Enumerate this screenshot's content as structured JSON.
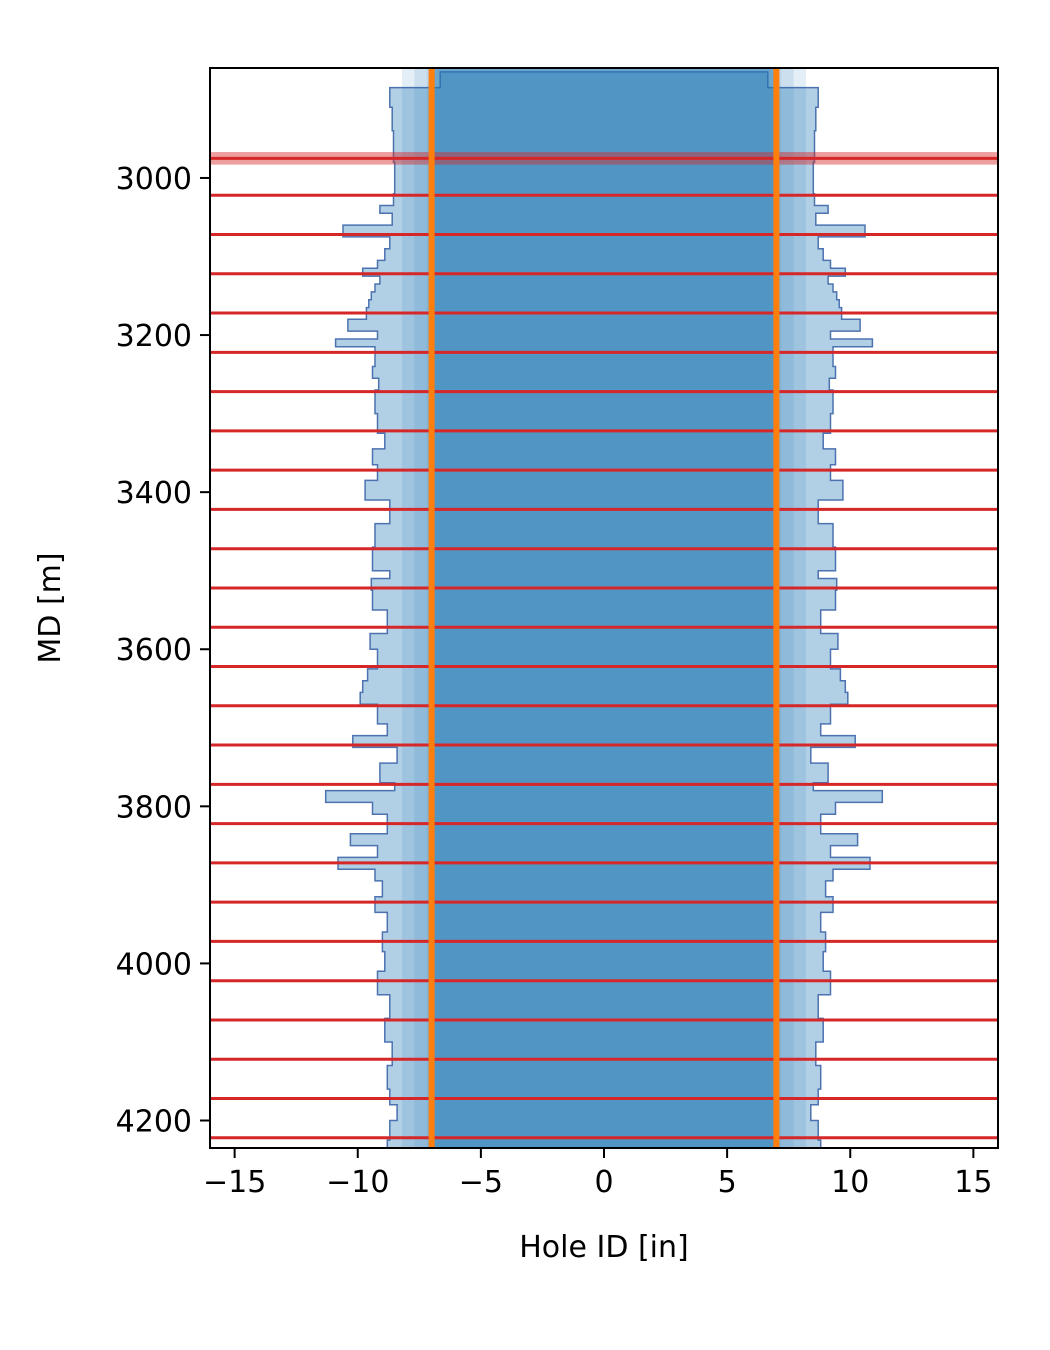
{
  "chart_data": {
    "type": "area",
    "xlabel": "Hole ID [in]",
    "ylabel": "MD [m]",
    "xlim": [
      -16,
      16
    ],
    "ylim": [
      4235,
      2860
    ],
    "y_inverted": true,
    "xticks": [
      -15,
      -10,
      -5,
      0,
      5,
      10,
      15
    ],
    "xtick_labels": [
      "−15",
      "−10",
      "−5",
      "0",
      "5",
      "10",
      "15"
    ],
    "yticks": [
      3000,
      3200,
      3400,
      3600,
      3800,
      4000,
      4200
    ],
    "ytick_labels": [
      "3000",
      "3200",
      "3400",
      "3600",
      "3800",
      "4000",
      "4200"
    ],
    "caliper_profile": {
      "md": [
        2865,
        2885,
        2910,
        2940,
        2980,
        3020,
        3035,
        3045,
        3060,
        3075,
        3090,
        3105,
        3115,
        3125,
        3135,
        3145,
        3155,
        3165,
        3180,
        3195,
        3205,
        3215,
        3240,
        3255,
        3270,
        3300,
        3325,
        3345,
        3365,
        3385,
        3410,
        3440,
        3470,
        3500,
        3510,
        3525,
        3550,
        3580,
        3600,
        3625,
        3640,
        3655,
        3670,
        3695,
        3710,
        3725,
        3745,
        3770,
        3780,
        3795,
        3810,
        3835,
        3850,
        3865,
        3880,
        3895,
        3915,
        3935,
        3960,
        3985,
        4010,
        4040,
        4070,
        4100,
        4130,
        4160,
        4180,
        4200,
        4225
      ],
      "hole_id": [
        13.3,
        17.4,
        17.2,
        17.1,
        17.0,
        17.1,
        18.2,
        17.2,
        21.2,
        17.4,
        17.8,
        18.4,
        19.6,
        18.2,
        18.6,
        18.9,
        19.1,
        19.3,
        20.8,
        18.4,
        21.8,
        18.6,
        18.8,
        18.3,
        18.6,
        18.4,
        17.8,
        18.8,
        18.4,
        19.4,
        17.4,
        18.6,
        18.8,
        17.4,
        18.9,
        18.8,
        17.6,
        19.0,
        18.4,
        19.2,
        19.6,
        19.8,
        18.4,
        17.6,
        20.4,
        16.8,
        18.2,
        17.0,
        22.6,
        18.8,
        17.6,
        20.6,
        18.4,
        21.6,
        18.6,
        18.0,
        18.6,
        17.6,
        18.0,
        17.8,
        18.4,
        17.4,
        17.8,
        17.2,
        17.6,
        17.4,
        16.8,
        17.4,
        17.6
      ]
    },
    "series": [
      {
        "name": "",
        "kind": "bit_od",
        "value": 14.0,
        "color": "#ff7f0e"
      }
    ],
    "horizontal_markers": {
      "color": "#d62728",
      "md": [
        2975,
        3022,
        3072,
        3122,
        3172,
        3222,
        3272,
        3322,
        3372,
        3422,
        3472,
        3522,
        3572,
        3622,
        3672,
        3722,
        3772,
        3822,
        3872,
        3922,
        3972,
        4022,
        4072,
        4122,
        4172,
        4222
      ]
    },
    "highlight_band": {
      "md_start": 2967,
      "md_end": 2983,
      "color": "#d62728"
    },
    "fill_color": "#1f77b4",
    "profile_line_color": "#4c72b0",
    "grid": false
  }
}
